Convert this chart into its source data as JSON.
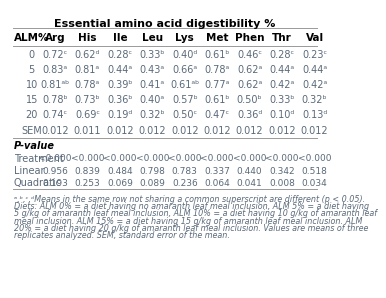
{
  "title": "Essential amino acid digestibility %",
  "columns": [
    "ALM%",
    "Arg",
    "His",
    "Ile",
    "Leu",
    "Lys",
    "Met",
    "Phen",
    "Thr",
    "Val"
  ],
  "data_rows": [
    {
      "label": "0",
      "values": [
        "0.72ᶜ",
        "0.62ᵈ",
        "0.28ᶜ",
        "0.33ᵇ",
        "0.40ᵈ",
        "0.61ᵇ",
        "0.46ᶜ",
        "0.28ᶜ",
        "0.23ᶜ"
      ]
    },
    {
      "label": "5",
      "values": [
        "0.83ᵃ",
        "0.81ᵃ",
        "0.44ᵃ",
        "0.43ᵃ",
        "0.66ᵃ",
        "0.78ᵃ",
        "0.62ᵃ",
        "0.44ᵃ",
        "0.44ᵃ"
      ]
    },
    {
      "label": "10",
      "values": [
        "0.81ᵃᵇ",
        "0.78ᵃ",
        "0.39ᵇ",
        "0.41ᵃ",
        "0.61ᵃᵇ",
        "0.77ᵃ",
        "0.62ᵃ",
        "0.42ᵃ",
        "0.42ᵃ"
      ]
    },
    {
      "label": "15",
      "values": [
        "0.78ᵇ",
        "0.73ᵇ",
        "0.36ᵇ",
        "0.40ᵃ",
        "0.57ᵇ",
        "0.61ᵇ",
        "0.50ᵇ",
        "0.33ᵇ",
        "0.32ᵇ"
      ]
    },
    {
      "label": "20",
      "values": [
        "0.74ᶜ",
        "0.69ᶜ",
        "0.19ᵈ",
        "0.32ᵇ",
        "0.50ᶜ",
        "0.47ᶜ",
        "0.36ᵈ",
        "0.10ᵈ",
        "0.13ᵈ"
      ]
    },
    {
      "label": "SEM",
      "values": [
        "0.012",
        "0.011",
        "0.012",
        "0.012",
        "0.012",
        "0.012",
        "0.012",
        "0.012",
        "0.012"
      ]
    }
  ],
  "pvalue_rows": [
    {
      "label": "Treatment",
      "values": [
        "<0.000",
        "<0.000",
        "<0.000",
        "<0.000",
        "<0.000",
        "<0.000",
        "<0.000",
        "<0.000",
        "<0.000"
      ]
    },
    {
      "label": "Linear",
      "values": [
        "0.956",
        "0.839",
        "0.484",
        "0.798",
        "0.783",
        "0.337",
        "0.440",
        "0.342",
        "0.518"
      ]
    },
    {
      "label": "Quadratic",
      "values": [
        "0.193",
        "0.253",
        "0.069",
        "0.089",
        "0.236",
        "0.064",
        "0.041",
        "0.008",
        "0.034"
      ]
    }
  ],
  "footnote_lines": [
    "ᵃ,ᵇ,ᶜ,ᵈMeans in the same row not sharing a common superscript are different (p < 0.05).",
    "Diets: ALM 0% = a diet having no amaranth leaf meal inclusion, ALM 5% = a diet having",
    "5 g/kg of amaranth leaf meal inclusion, ALM 10% = a diet having 10 g/kg of amaranth leaf",
    "meal inclusion. ALM 15% = a diet having 15 g/kg of amaranth leaf meal inclusion. ALM",
    "20% = a diet having 20 g/kg of amaranth leaf meal inclusion. Values are means of three",
    "replicates analyzed. SEM, standard error of the mean."
  ],
  "bg_color": "#ffffff",
  "header_color": "#000000",
  "text_color": "#5a6a7a",
  "line_color": "#999999",
  "title_fontsize": 8.0,
  "header_fontsize": 7.5,
  "data_fontsize": 7.0,
  "pval_label_fontsize": 7.0,
  "pval_data_fontsize": 6.5,
  "footnote_fontsize": 5.8
}
